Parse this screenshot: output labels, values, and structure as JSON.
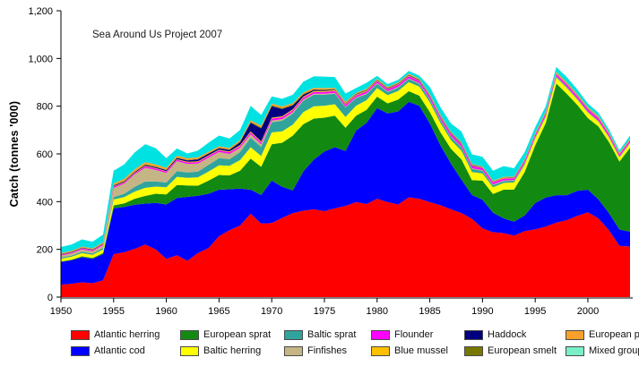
{
  "figure": {
    "annotation": "Sea Around Us Project 2007",
    "background_color": "#FFFFFF",
    "axis_color": "#000000"
  },
  "chart_data": {
    "type": "area",
    "stacked": true,
    "title": "",
    "xlabel": "",
    "ylabel": "Catch (tonnes '000)",
    "ylim": [
      0,
      1200
    ],
    "grid": false,
    "legend_position": "bottom",
    "y_tick_values": [
      0,
      200,
      400,
      600,
      800,
      1000,
      1200
    ],
    "y_tick_labels": [
      "0",
      "200",
      "400",
      "600",
      "800",
      "1,000",
      "1,200"
    ],
    "x_tick_values": [
      1950,
      1955,
      1960,
      1965,
      1970,
      1975,
      1980,
      1985,
      1990,
      1995,
      2000
    ],
    "x_tick_labels": [
      "1950",
      "1955",
      "1960",
      "1965",
      "1970",
      "1975",
      "1980",
      "1985",
      "1990",
      "1995",
      "2000"
    ],
    "x": [
      1950,
      1951,
      1952,
      1953,
      1954,
      1955,
      1956,
      1957,
      1958,
      1959,
      1960,
      1961,
      1962,
      1963,
      1964,
      1965,
      1966,
      1967,
      1968,
      1969,
      1970,
      1971,
      1972,
      1973,
      1974,
      1975,
      1976,
      1977,
      1978,
      1979,
      1980,
      1981,
      1982,
      1983,
      1984,
      1985,
      1986,
      1987,
      1988,
      1989,
      1990,
      1991,
      1992,
      1993,
      1994,
      1995,
      1996,
      1997,
      1998,
      1999,
      2000,
      2001,
      2002,
      2003,
      2004
    ],
    "series": [
      {
        "name": "Atlantic herring",
        "color": "#FF0000",
        "values": [
          52,
          56,
          62,
          58,
          70,
          180,
          188,
          202,
          220,
          200,
          160,
          175,
          152,
          185,
          205,
          255,
          280,
          300,
          350,
          308,
          310,
          332,
          352,
          362,
          368,
          360,
          372,
          382,
          398,
          390,
          412,
          398,
          388,
          418,
          412,
          398,
          385,
          368,
          352,
          328,
          288,
          272,
          268,
          258,
          276,
          284,
          295,
          312,
          322,
          340,
          355,
          330,
          280,
          215,
          212
        ]
      },
      {
        "name": "Atlantic cod",
        "color": "#0000FF",
        "values": [
          95,
          98,
          105,
          102,
          110,
          192,
          190,
          185,
          172,
          195,
          228,
          240,
          268,
          240,
          228,
          195,
          172,
          155,
          100,
          120,
          178,
          130,
          95,
          165,
          208,
          250,
          256,
          230,
          300,
          340,
          380,
          372,
          390,
          400,
          390,
          330,
          252,
          192,
          140,
          100,
          120,
          82,
          62,
          58,
          66,
          110,
          122,
          115,
          105,
          105,
          95,
          80,
          72,
          68,
          62
        ]
      },
      {
        "name": "European sprat",
        "color": "#128A12",
        "values": [
          2,
          3,
          4,
          4,
          5,
          12,
          15,
          25,
          32,
          38,
          42,
          55,
          48,
          42,
          55,
          62,
          58,
          75,
          130,
          118,
          152,
          185,
          230,
          198,
          172,
          142,
          132,
          98,
          62,
          55,
          48,
          42,
          50,
          45,
          42,
          48,
          55,
          62,
          85,
          62,
          80,
          78,
          120,
          135,
          182,
          242,
          312,
          468,
          425,
          360,
          300,
          305,
          298,
          285,
          352
        ]
      },
      {
        "name": "Baltic herring",
        "color": "#FFFF00",
        "values": [
          12,
          12,
          13,
          13,
          14,
          25,
          26,
          30,
          34,
          30,
          30,
          34,
          32,
          35,
          38,
          40,
          40,
          44,
          48,
          45,
          50,
          48,
          46,
          50,
          52,
          50,
          48,
          45,
          42,
          40,
          36,
          34,
          36,
          38,
          38,
          40,
          38,
          36,
          36,
          34,
          30,
          28,
          28,
          30,
          30,
          28,
          26,
          25,
          24,
          22,
          22,
          20,
          18,
          16,
          18
        ]
      },
      {
        "name": "Baltic sprat",
        "color": "#2FA49C",
        "values": [
          5,
          5,
          6,
          6,
          7,
          10,
          14,
          20,
          26,
          22,
          20,
          24,
          22,
          24,
          28,
          30,
          28,
          34,
          40,
          38,
          42,
          44,
          46,
          48,
          48,
          46,
          44,
          40,
          32,
          26,
          18,
          14,
          14,
          13,
          12,
          12,
          12,
          13,
          15,
          13,
          11,
          9,
          8,
          7,
          6,
          5,
          4,
          4,
          4,
          3,
          3,
          3,
          3,
          3,
          3
        ]
      },
      {
        "name": "Finfishes",
        "color": "#C6B584",
        "values": [
          8,
          9,
          10,
          9,
          11,
          38,
          42,
          52,
          58,
          48,
          40,
          42,
          36,
          34,
          30,
          26,
          22,
          18,
          14,
          11,
          8,
          7,
          6,
          5,
          4,
          4,
          4,
          3,
          3,
          3,
          3,
          3,
          3,
          3,
          3,
          3,
          3,
          3,
          3,
          3,
          3,
          3,
          3,
          2,
          2,
          2,
          2,
          2,
          2,
          2,
          2,
          2,
          2,
          2,
          2
        ]
      },
      {
        "name": "Flounder",
        "color": "#FF00FF",
        "values": [
          3,
          3,
          4,
          4,
          4,
          5,
          5,
          5,
          6,
          6,
          6,
          6,
          6,
          6,
          7,
          7,
          7,
          7,
          8,
          8,
          8,
          8,
          8,
          8,
          8,
          8,
          8,
          8,
          8,
          8,
          8,
          8,
          9,
          9,
          9,
          10,
          10,
          10,
          9,
          9,
          9,
          9,
          8,
          8,
          8,
          8,
          9,
          9,
          9,
          9,
          10,
          10,
          9,
          8,
          8
        ]
      },
      {
        "name": "Blue mussel",
        "color": "#FFC000",
        "values": [
          1,
          1,
          1,
          1,
          1,
          2,
          2,
          2,
          2,
          2,
          2,
          2,
          3,
          3,
          3,
          3,
          3,
          4,
          4,
          4,
          4,
          4,
          4,
          4,
          4,
          4,
          3,
          3,
          3,
          3,
          2,
          2,
          2,
          2,
          2,
          2,
          2,
          2,
          2,
          2,
          2,
          2,
          2,
          2,
          2,
          2,
          2,
          2,
          2,
          2,
          2,
          2,
          2,
          2,
          2
        ]
      },
      {
        "name": "Haddock",
        "color": "#000080",
        "values": [
          2,
          2,
          2,
          2,
          2,
          3,
          3,
          3,
          4,
          4,
          4,
          5,
          6,
          8,
          7,
          6,
          7,
          12,
          36,
          55,
          48,
          30,
          16,
          8,
          4,
          3,
          2,
          2,
          2,
          2,
          2,
          2,
          2,
          2,
          2,
          2,
          2,
          2,
          2,
          2,
          1,
          1,
          1,
          1,
          1,
          1,
          1,
          1,
          1,
          1,
          1,
          1,
          1,
          1,
          1
        ]
      },
      {
        "name": "European smelt",
        "color": "#787800",
        "values": [
          1,
          1,
          1,
          1,
          1,
          2,
          2,
          2,
          2,
          2,
          2,
          2,
          2,
          2,
          2,
          2,
          2,
          3,
          4,
          4,
          4,
          4,
          4,
          4,
          3,
          3,
          3,
          2,
          2,
          2,
          2,
          2,
          2,
          2,
          2,
          2,
          2,
          2,
          2,
          2,
          1,
          1,
          1,
          1,
          1,
          1,
          1,
          1,
          1,
          1,
          1,
          1,
          1,
          1,
          1
        ]
      },
      {
        "name": "European plaice",
        "color": "#F7A02D",
        "values": [
          4,
          4,
          4,
          4,
          5,
          8,
          9,
          10,
          10,
          9,
          8,
          8,
          7,
          7,
          6,
          6,
          6,
          6,
          7,
          7,
          7,
          7,
          6,
          6,
          6,
          6,
          5,
          5,
          4,
          4,
          4,
          4,
          4,
          4,
          4,
          4,
          4,
          3,
          3,
          3,
          3,
          3,
          3,
          3,
          3,
          4,
          4,
          5,
          5,
          5,
          5,
          5,
          4,
          4,
          4
        ]
      },
      {
        "name": "Mixed group",
        "color": "#00E2E2",
        "legend_color": "#79EFC7",
        "values": [
          25,
          26,
          30,
          28,
          32,
          53,
          60,
          70,
          75,
          68,
          40,
          30,
          20,
          28,
          38,
          45,
          40,
          42,
          60,
          45,
          30,
          32,
          35,
          45,
          48,
          48,
          45,
          35,
          20,
          25,
          12,
          12,
          10,
          12,
          12,
          30,
          32,
          35,
          45,
          40,
          40,
          42,
          45,
          35,
          30,
          25,
          22,
          20,
          22,
          20,
          15,
          14,
          12,
          10,
          12
        ]
      }
    ],
    "legend_rows": [
      [
        "Atlantic herring",
        "European sprat",
        "Baltic sprat",
        "Flounder",
        "Haddock",
        "European plaice"
      ],
      [
        "Atlantic cod",
        "Baltic herring",
        "Finfishes",
        "Blue mussel",
        "European smelt",
        "Mixed group"
      ]
    ]
  }
}
